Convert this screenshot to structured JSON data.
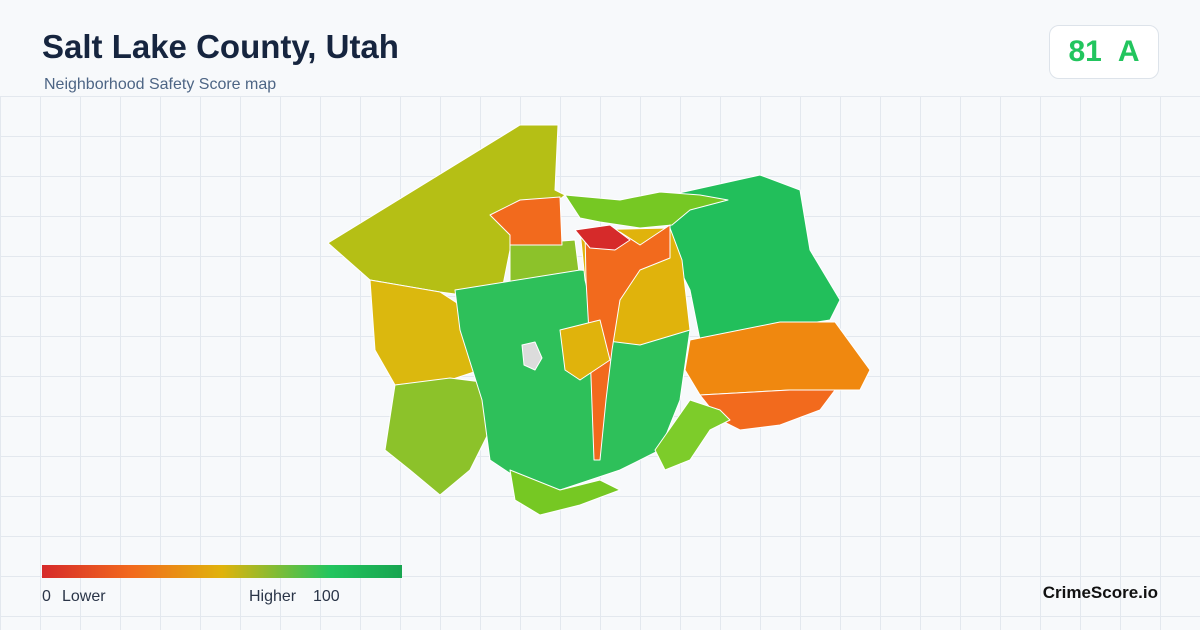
{
  "header": {
    "title": "Salt Lake County, Utah",
    "subtitle": "Neighborhood Safety Score map"
  },
  "score": {
    "value": "81",
    "grade": "A"
  },
  "legend": {
    "min": "0",
    "min_label": "Lower",
    "max_label": "Higher",
    "max": "100"
  },
  "brand": "CrimeScore.io"
}
